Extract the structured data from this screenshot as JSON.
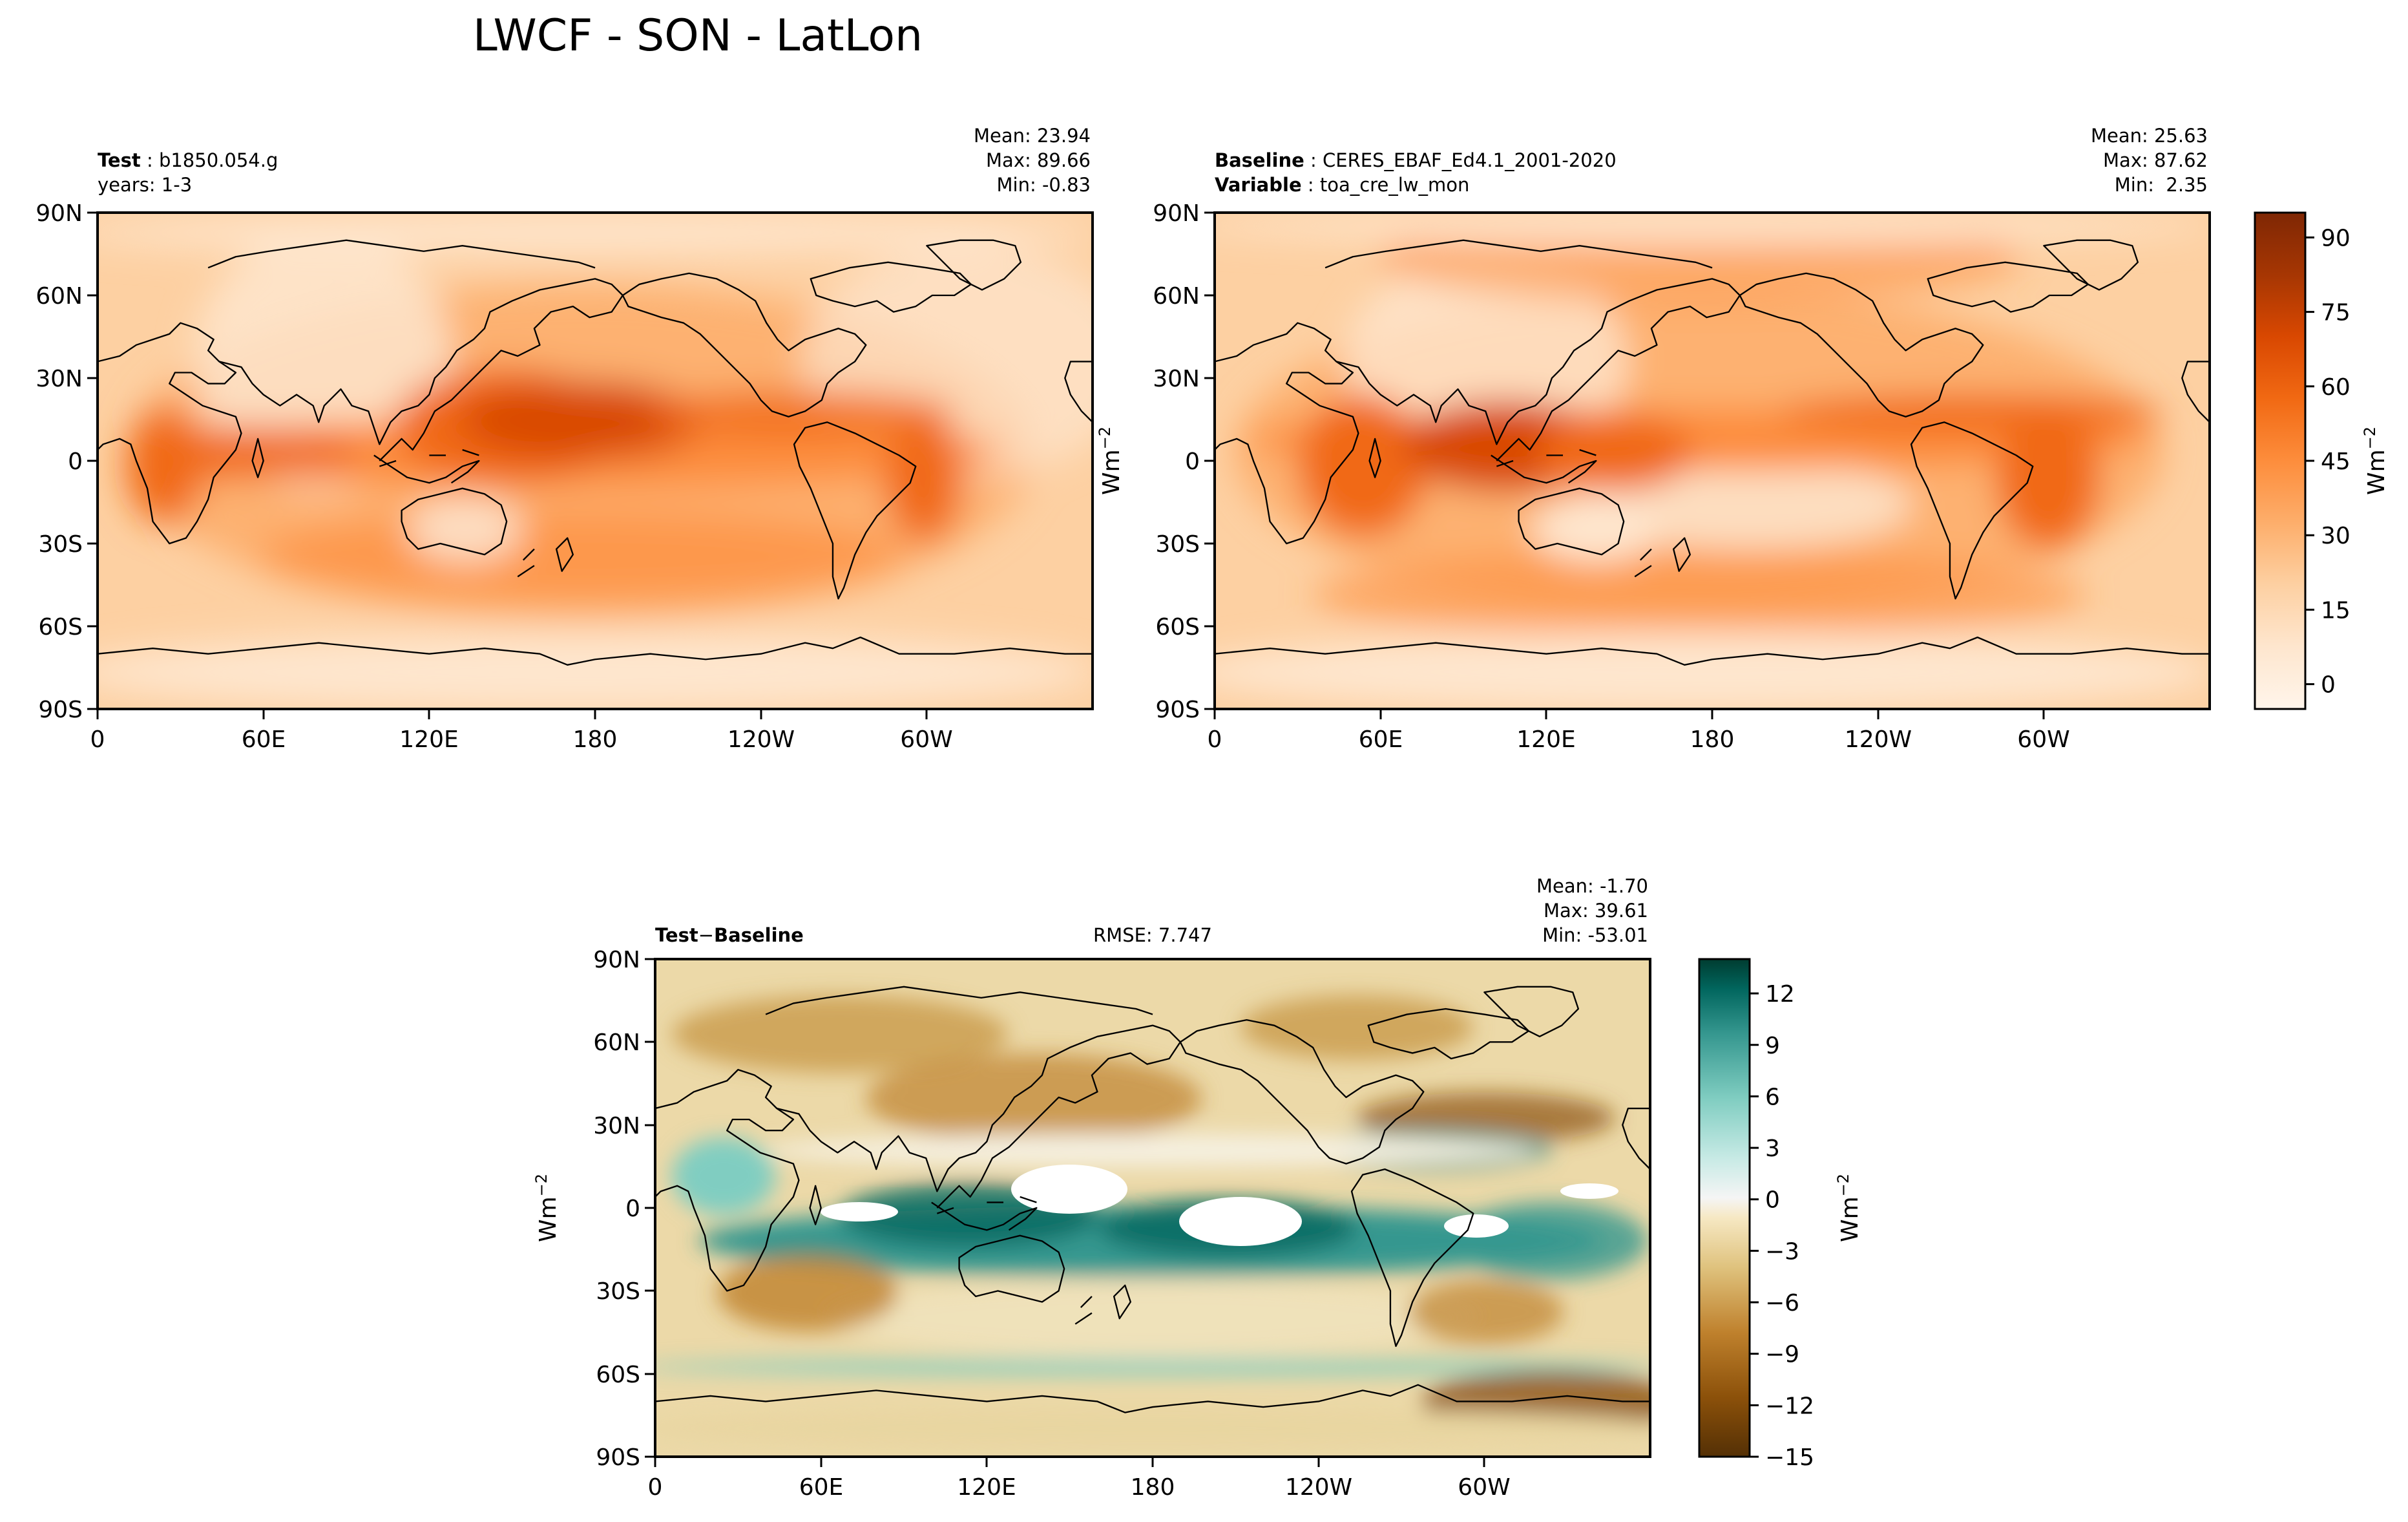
{
  "figure": {
    "title": "LWCF - SON - LatLon"
  },
  "colors": {
    "oranges": [
      "#fff5eb",
      "#fee6ce",
      "#fdd0a2",
      "#fdae6b",
      "#fd8d3c",
      "#f16913",
      "#d94801",
      "#a63603",
      "#7f2704"
    ],
    "brbg_brown": [
      "#543005",
      "#8c510a",
      "#bf812d",
      "#dfc27d",
      "#f6e8c3"
    ],
    "brbg_green": [
      "#c7eae5",
      "#80cdc1",
      "#35978f",
      "#01665e",
      "#003c30"
    ],
    "coast": "#000000"
  },
  "panels": {
    "test": {
      "label_bold": "Test",
      "label_text": "b1850.054.g",
      "line2_text": "years: 1-3",
      "stats": [
        "Mean: 23.94",
        "Max: 89.66",
        "Min: -0.83"
      ]
    },
    "baseline": {
      "label_bold": "Baseline",
      "label_text": "CERES_EBAF_Ed4.1_2001-2020",
      "line2_bold": "Variable",
      "line2_text": "toa_cre_lw_mon",
      "stats": [
        "Mean: 25.63",
        "Max: 87.62",
        "Min:  2.35"
      ]
    },
    "diff": {
      "label_a": "Test",
      "label_sep": "−",
      "label_b": "Baseline",
      "rmse": "RMSE: 7.747",
      "stats": [
        "Mean: -1.70",
        "Max: 39.61",
        "Min: -53.01"
      ]
    }
  },
  "axes": {
    "lat_ticks": [
      "90N",
      "60N",
      "30N",
      "0",
      "30S",
      "60S",
      "90S"
    ],
    "lon_ticks": [
      "0",
      "60E",
      "120E",
      "180",
      "120W",
      "60W"
    ],
    "unit_label": "Wm",
    "unit_exp": "−2"
  },
  "chart_data": [
    {
      "type": "heatmap",
      "name": "Test",
      "title": "b1850.054.g",
      "x": "longitude (0 to 360)",
      "y": "latitude (-90 to 90)",
      "mean": 23.94,
      "max": 89.66,
      "min": -0.83,
      "colorbar_ticks": [
        0,
        15,
        30,
        45,
        60,
        75,
        90
      ],
      "colorbar_range": [
        -5,
        95
      ]
    },
    {
      "type": "heatmap",
      "name": "Baseline",
      "title": "CERES_EBAF_Ed4.1_2001-2020",
      "variable": "toa_cre_lw_mon",
      "mean": 25.63,
      "max": 87.62,
      "min": 2.35,
      "colorbar_ticks": [
        0,
        15,
        30,
        45,
        60,
        75,
        90
      ],
      "colorbar_range": [
        -5,
        95
      ]
    },
    {
      "type": "heatmap",
      "name": "Test−Baseline",
      "rmse": 7.747,
      "mean": -1.7,
      "max": 39.61,
      "min": -53.01,
      "colorbar_ticks": [
        -15,
        -12,
        -9,
        -6,
        -3,
        0,
        3,
        6,
        9,
        12
      ],
      "colorbar_range": [
        -15,
        14
      ]
    }
  ]
}
